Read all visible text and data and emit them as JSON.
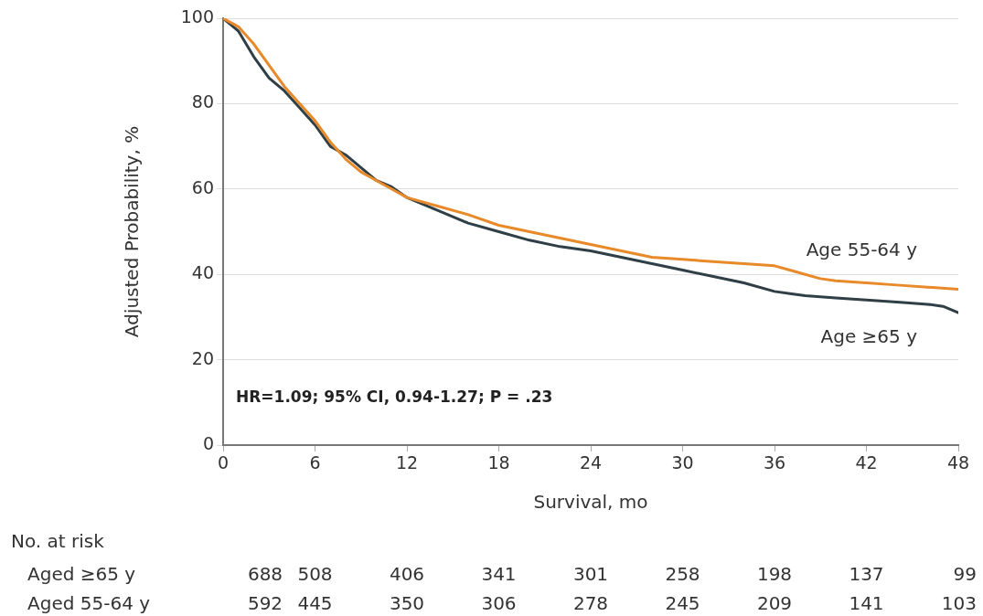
{
  "chart_data": {
    "type": "line",
    "xlabel": "Survival, mo",
    "ylabel": "Adjusted Probability, %",
    "xlim": [
      0,
      48
    ],
    "xticks": [
      0,
      6,
      12,
      18,
      24,
      30,
      36,
      42,
      48
    ],
    "ylim": [
      0,
      100
    ],
    "yticks": [
      0,
      20,
      40,
      60,
      80,
      100
    ],
    "grid": "y",
    "legend": false,
    "marker": "none",
    "line_style": "solid",
    "series": [
      {
        "name": "Age 55-64 y",
        "color": "#e8892a",
        "x": [
          0,
          1,
          2,
          3,
          4,
          5,
          6,
          7,
          8,
          9,
          10,
          11,
          12,
          14,
          16,
          18,
          20,
          22,
          24,
          26,
          28,
          30,
          32,
          34,
          36,
          37,
          38,
          39,
          40,
          42,
          44,
          46,
          48
        ],
        "values": [
          100,
          98,
          94,
          89,
          84,
          80,
          76,
          71,
          67,
          64,
          62,
          60,
          58,
          56,
          54,
          51.5,
          50,
          48.5,
          47,
          45.5,
          44,
          43.5,
          43,
          42.5,
          42,
          41,
          40,
          39,
          38.5,
          38,
          37.5,
          37,
          36.5
        ]
      },
      {
        "name": "Age ≥65 y",
        "color": "#2f3f45",
        "x": [
          0,
          1,
          2,
          3,
          4,
          5,
          6,
          7,
          8,
          9,
          10,
          11,
          12,
          14,
          16,
          18,
          20,
          22,
          24,
          26,
          28,
          30,
          32,
          34,
          36,
          37,
          38,
          40,
          42,
          44,
          46,
          47,
          48
        ],
        "values": [
          100,
          97,
          91,
          86,
          83,
          79,
          75,
          70,
          68,
          65,
          62,
          60.5,
          58,
          55,
          52,
          50,
          48,
          46.5,
          45.5,
          44,
          42.5,
          41,
          39.5,
          38,
          36,
          35.5,
          35,
          34.5,
          34,
          33.5,
          33,
          32.5,
          31
        ]
      }
    ],
    "annotations": [
      "HR=1.09; 95% CI, 0.94-1.27; P = .23",
      "No. at risk",
      "Aged ≥65 y",
      "688",
      "508",
      "406",
      "341",
      "301",
      "258",
      "198",
      "137",
      "99",
      "Aged 55-64 y",
      "592",
      "445",
      "350",
      "306",
      "278",
      "245",
      "209",
      "141",
      "103"
    ]
  }
}
